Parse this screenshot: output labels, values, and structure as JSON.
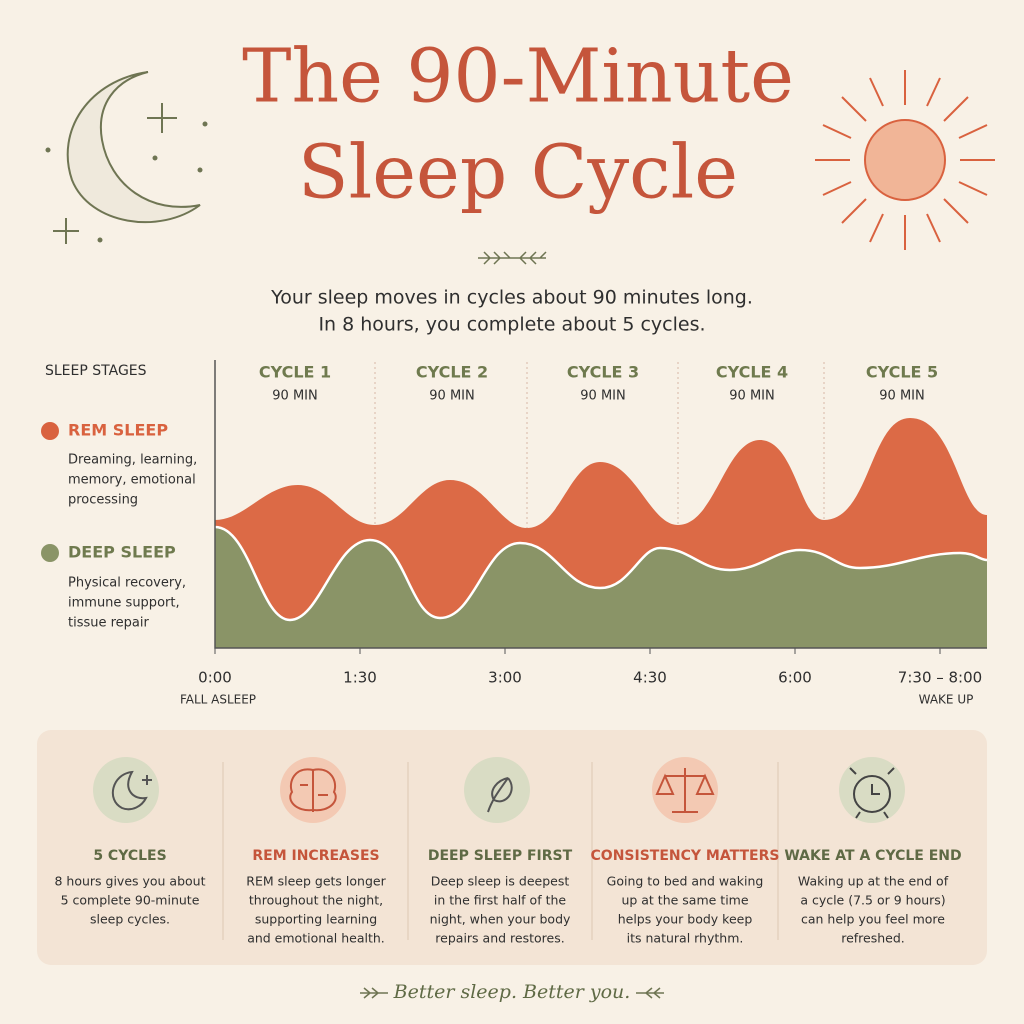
{
  "header": {
    "title_line1": "The 90-Minute",
    "title_line2": "Sleep Cycle",
    "subtitle_line1": "Your sleep moves in cycles about 90 minutes long.",
    "subtitle_line2": "In 8 hours, you complete about 5 cycles."
  },
  "stages": {
    "heading": "SLEEP STAGES",
    "items": [
      {
        "name": "REM SLEEP",
        "description_lines": [
          "Dreaming, learning,",
          "memory, emotional",
          "processing"
        ]
      },
      {
        "name": "DEEP SLEEP",
        "description_lines": [
          "Physical recovery,",
          "immune support,",
          "tissue repair"
        ]
      }
    ]
  },
  "cycles": [
    {
      "label": "CYCLE 1",
      "duration": "90 MIN"
    },
    {
      "label": "CYCLE 2",
      "duration": "90 MIN"
    },
    {
      "label": "CYCLE 3",
      "duration": "90 MIN"
    },
    {
      "label": "CYCLE 4",
      "duration": "90 MIN"
    },
    {
      "label": "CYCLE 5",
      "duration": "90 MIN"
    }
  ],
  "time_axis": {
    "ticks": [
      "0:00",
      "1:30",
      "3:00",
      "4:30",
      "6:00",
      "7:30 – 8:00"
    ],
    "start_note": "FALL ASLEEP",
    "end_note": "WAKE UP"
  },
  "tips": [
    {
      "title": "5 CYCLES",
      "lines": [
        "8 hours gives you about",
        "5 complete 90-minute",
        "sleep cycles."
      ]
    },
    {
      "title": "REM INCREASES",
      "lines": [
        "REM sleep gets longer",
        "throughout the night,",
        "supporting learning",
        "and emotional health."
      ]
    },
    {
      "title": "DEEP SLEEP FIRST",
      "lines": [
        "Deep sleep is deepest",
        "in the first half of the",
        "night, when your body",
        "repairs and restores."
      ]
    },
    {
      "title": "CONSISTENCY MATTERS",
      "lines": [
        "Going to bed and waking",
        "up at the same time",
        "helps your body keep",
        "its natural rhythm."
      ]
    },
    {
      "title": "WAKE AT A CYCLE END",
      "lines": [
        "Waking up at the end of",
        "a cycle (7.5 or 9 hours)",
        "can help you feel more",
        "refreshed."
      ]
    }
  ],
  "footer": "Better sleep. Better you."
}
